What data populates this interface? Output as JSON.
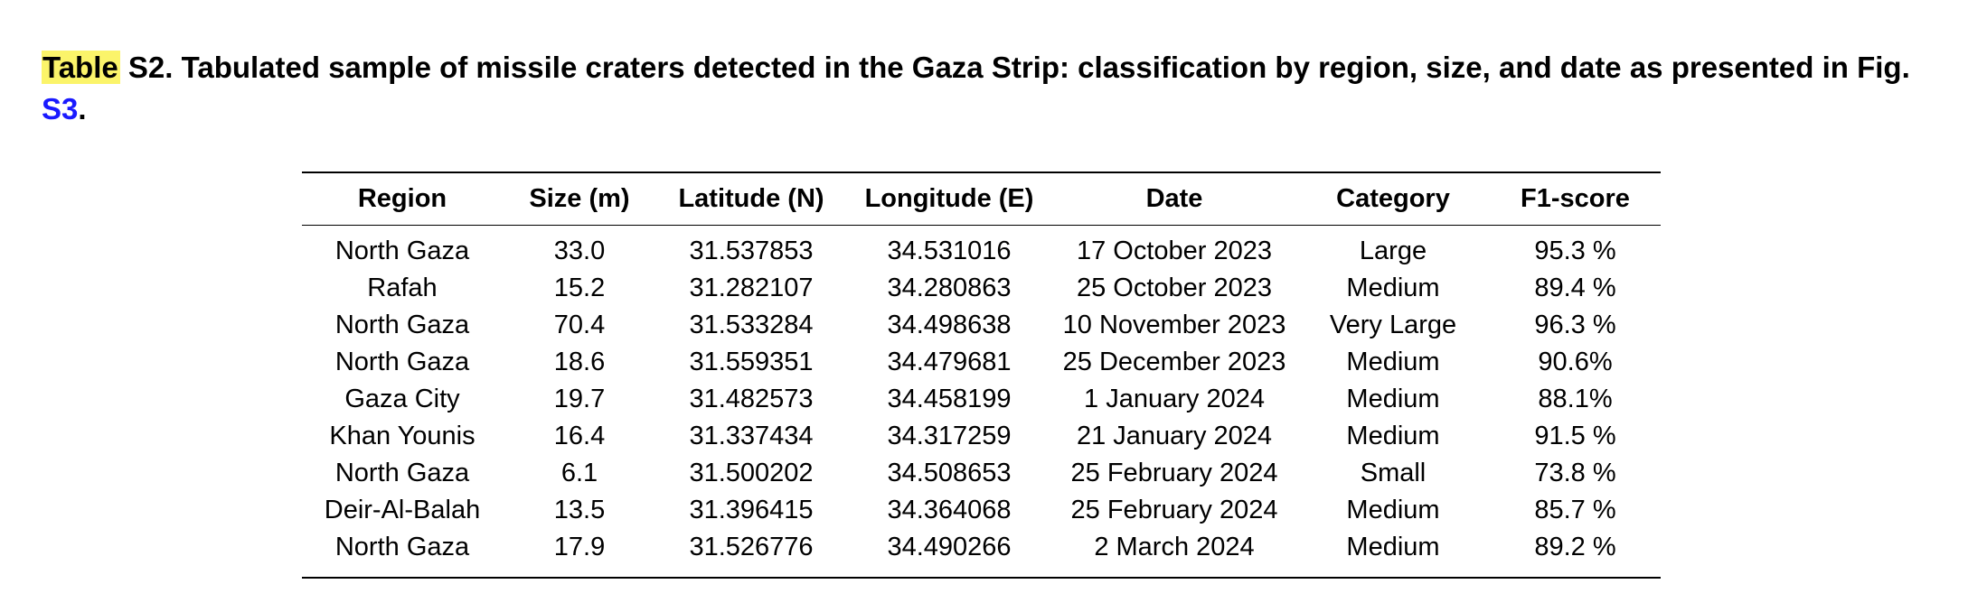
{
  "caption": {
    "highlight": "Table",
    "label": "S2.",
    "text": "Tabulated sample of missile craters detected in the Gaza Strip: classification by region, size, and date as presented in Fig.",
    "ref": "S3",
    "end": "."
  },
  "table": {
    "headers": [
      "Region",
      "Size (m)",
      "Latitude (N)",
      "Longitude (E)",
      "Date",
      "Category",
      "F1-score"
    ],
    "rows": [
      [
        "North Gaza",
        "33.0",
        "31.537853",
        "34.531016",
        "17 October 2023",
        "Large",
        "95.3 %"
      ],
      [
        "Rafah",
        "15.2",
        "31.282107",
        "34.280863",
        "25 October 2023",
        "Medium",
        "89.4 %"
      ],
      [
        "North Gaza",
        "70.4",
        "31.533284",
        "34.498638",
        "10 November 2023",
        "Very Large",
        "96.3 %"
      ],
      [
        "North Gaza",
        "18.6",
        "31.559351",
        "34.479681",
        "25 December 2023",
        "Medium",
        "90.6%"
      ],
      [
        "Gaza City",
        "19.7",
        "31.482573",
        "34.458199",
        "1 January 2024",
        "Medium",
        "88.1%"
      ],
      [
        "Khan Younis",
        "16.4",
        "31.337434",
        "34.317259",
        "21 January 2024",
        "Medium",
        "91.5 %"
      ],
      [
        "North Gaza",
        "6.1",
        "31.500202",
        "34.508653",
        "25 February 2024",
        "Small",
        "73.8 %"
      ],
      [
        "Deir-Al-Balah",
        "13.5",
        "31.396415",
        "34.364068",
        "25 February 2024",
        "Medium",
        "85.7 %"
      ],
      [
        "North Gaza",
        "17.9",
        "31.526776",
        "34.490266",
        "2 March 2024",
        "Medium",
        "89.2 %"
      ]
    ]
  },
  "colors": {
    "highlight": "#fbf46a",
    "link": "#1a1aff"
  }
}
